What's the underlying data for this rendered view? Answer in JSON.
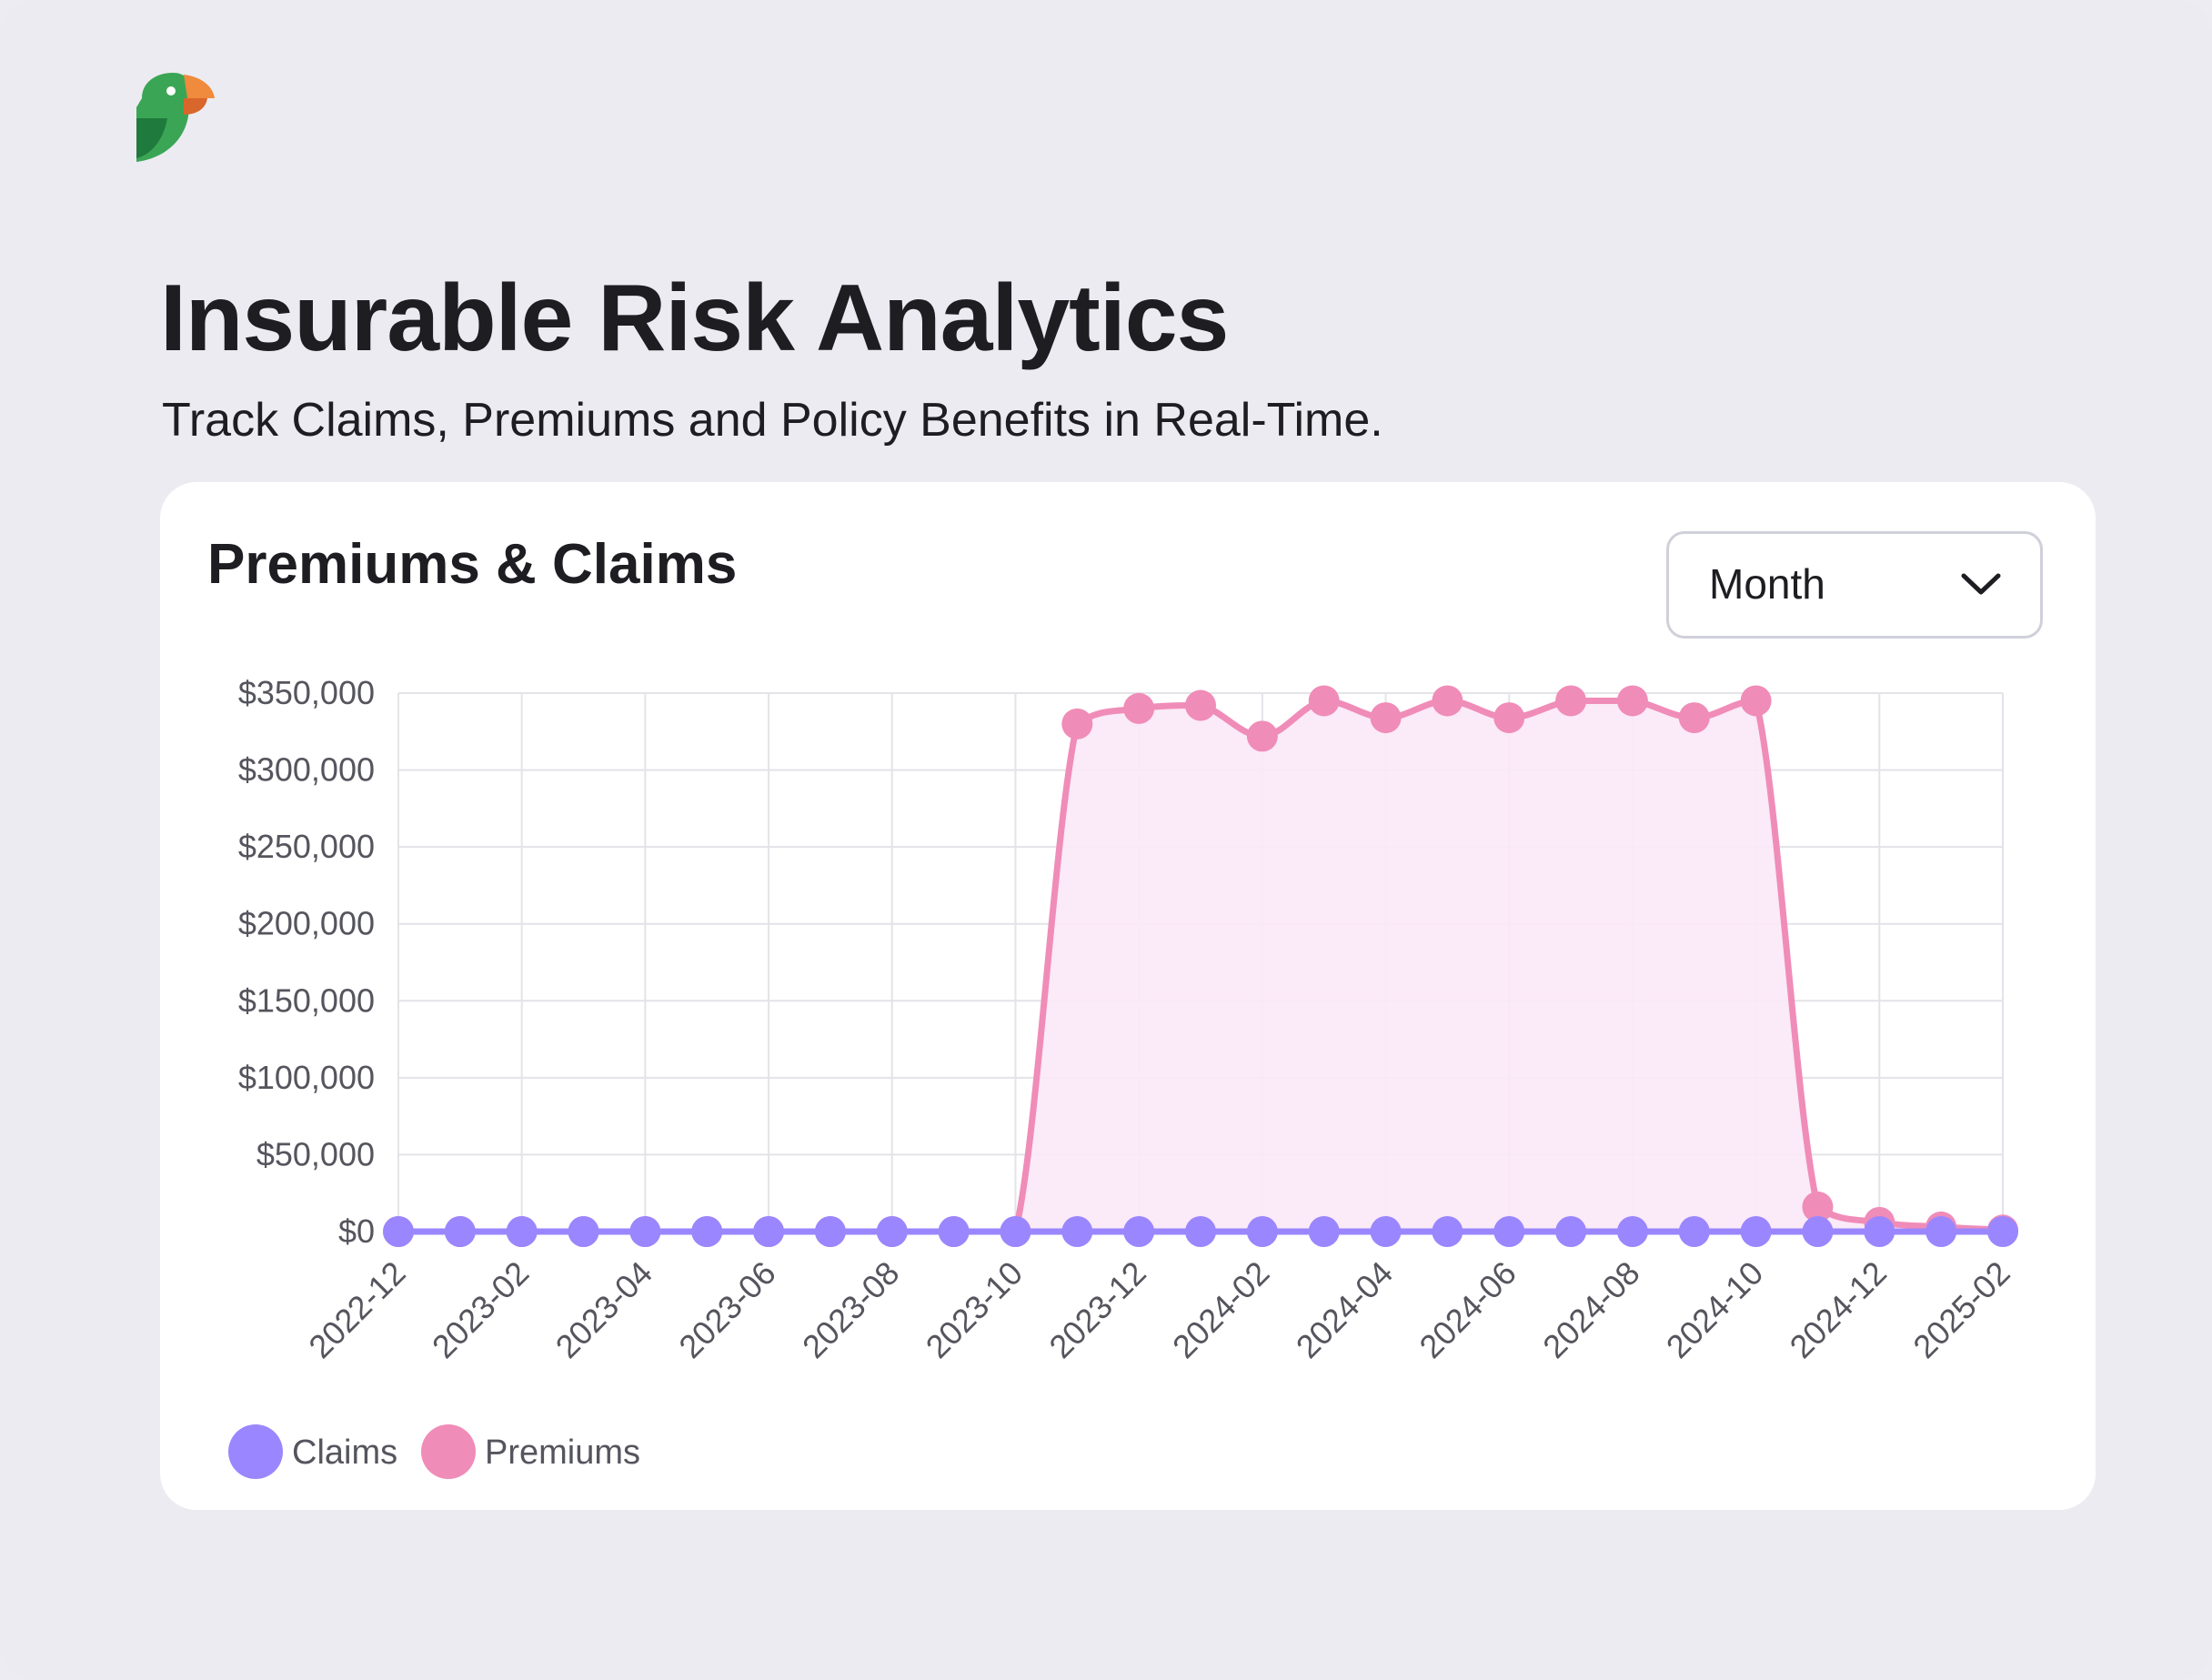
{
  "page": {
    "title": "Insurable Risk Analytics",
    "subtitle": "Track Claims, Premiums and Policy Benefits in Real-Time."
  },
  "logo": {
    "icon": "parrot-logo-icon",
    "colors": [
      "#3aa655",
      "#1f7a3d",
      "#f08a3c",
      "#ffffff"
    ]
  },
  "card": {
    "title": "Premiums & Claims",
    "period_select": {
      "value": "Month",
      "icon": "chevron-down-icon"
    }
  },
  "colors": {
    "claims": "#9a86ff",
    "premiums": "#f08cb8",
    "premiums_fill": "#fbe8f6",
    "grid": "#e3e3e8"
  },
  "chart_data": {
    "type": "line",
    "x": [
      "2022-12",
      "2023-01",
      "2023-02",
      "2023-03",
      "2023-04",
      "2023-05",
      "2023-06",
      "2023-07",
      "2023-08",
      "2023-09",
      "2023-10",
      "2023-11",
      "2023-12",
      "2024-01",
      "2024-02",
      "2024-03",
      "2024-04",
      "2024-05",
      "2024-06",
      "2024-07",
      "2024-08",
      "2024-09",
      "2024-10",
      "2024-11",
      "2024-12",
      "2025-01",
      "2025-02"
    ],
    "x_tick_labels": [
      "2022-12",
      "2023-02",
      "2023-04",
      "2023-06",
      "2023-08",
      "2023-10",
      "2023-12",
      "2024-02",
      "2024-04",
      "2024-06",
      "2024-08",
      "2024-10",
      "2024-12",
      "2025-02"
    ],
    "y_tick_labels": [
      "$0",
      "$50,000",
      "$100,000",
      "$150,000",
      "$200,000",
      "$250,000",
      "$300,000",
      "$350,000"
    ],
    "ylim": [
      0,
      350000
    ],
    "grid": true,
    "legend_position": "bottom-left",
    "series": [
      {
        "name": "Claims",
        "values": [
          0,
          0,
          0,
          0,
          0,
          0,
          0,
          0,
          0,
          0,
          0,
          0,
          0,
          0,
          0,
          0,
          0,
          0,
          0,
          0,
          0,
          0,
          0,
          0,
          0,
          0,
          0
        ]
      },
      {
        "name": "Premiums",
        "fill": true,
        "values": [
          0,
          0,
          0,
          0,
          0,
          0,
          0,
          0,
          0,
          0,
          0,
          330000,
          340000,
          342000,
          322000,
          345000,
          334000,
          345000,
          334000,
          345000,
          345000,
          334000,
          345000,
          16000,
          6000,
          3000,
          1000
        ]
      }
    ]
  }
}
